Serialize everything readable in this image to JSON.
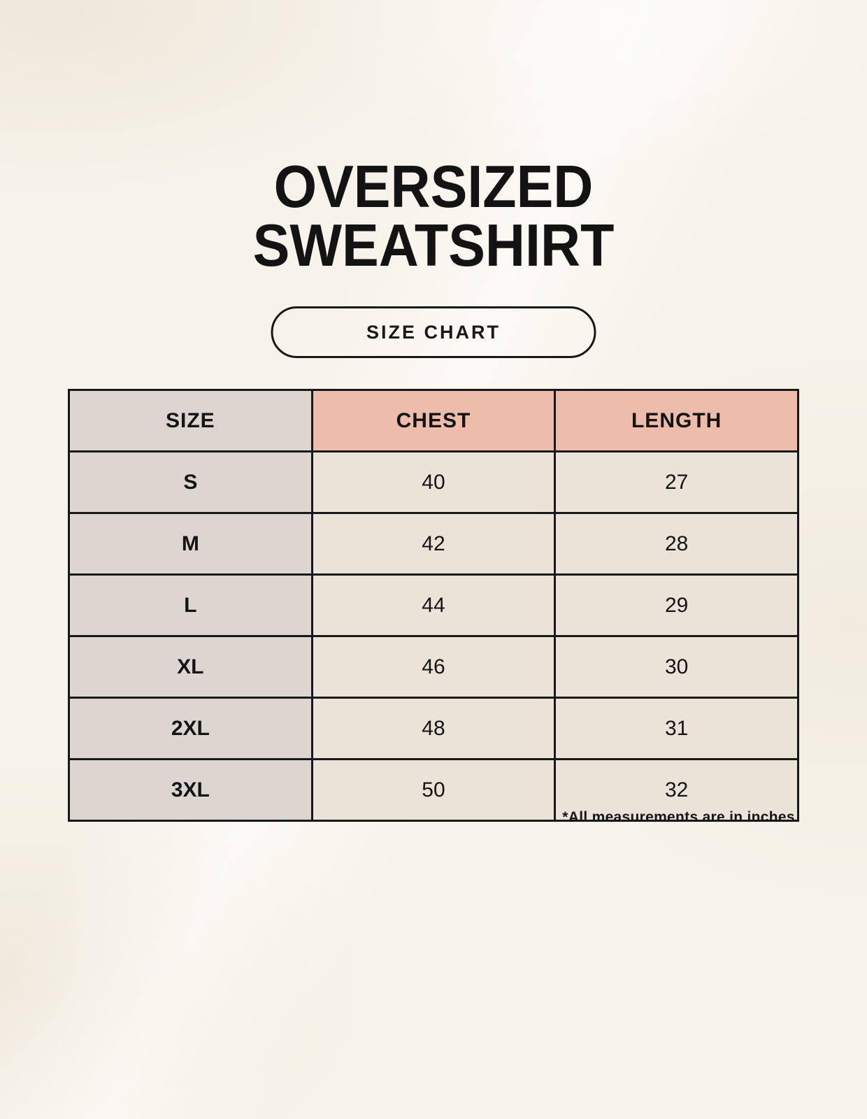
{
  "header": {
    "title_line1": "OVERSIZED",
    "title_line2": "SWEATSHIRT",
    "size_chart_button": "SIZE CHART"
  },
  "footnote": "*All measurements are in inches.",
  "chart_data": {
    "type": "table",
    "title": "OVERSIZED SWEATSHIRT SIZE CHART",
    "columns": [
      "SIZE",
      "CHEST",
      "LENGTH"
    ],
    "rows": [
      [
        "S",
        "40",
        "27"
      ],
      [
        "M",
        "42",
        "28"
      ],
      [
        "L",
        "44",
        "29"
      ],
      [
        "XL",
        "46",
        "30"
      ],
      [
        "2XL",
        "48",
        "31"
      ],
      [
        "3XL",
        "50",
        "32"
      ]
    ],
    "units": "inches"
  },
  "colors": {
    "background": "#f7f3ea",
    "table_border": "#181818",
    "size_column_bg": "#ddd5cf",
    "measure_header_bg": "#edbcab",
    "value_cell_bg": "#ebe3d8",
    "text": "#141414"
  }
}
